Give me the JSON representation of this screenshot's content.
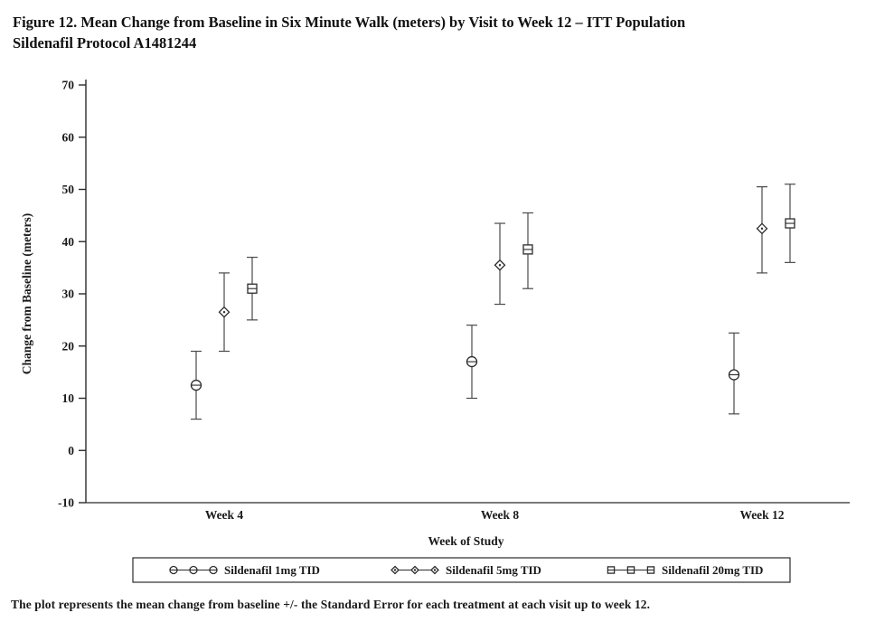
{
  "figure": {
    "title_line1": "Figure 12. Mean Change from Baseline in Six Minute Walk (meters) by Visit to Week 12 – ITT Population",
    "title_line2": "Sildenafil Protocol A1481244",
    "footnote": "The plot represents the mean change from baseline +/- the Standard Error for each treatment at each visit up to week 12."
  },
  "chart_data": {
    "type": "scatter",
    "subtype": "means-with-standard-error-bars",
    "title": "",
    "xlabel": "Week of Study",
    "ylabel": "Change from Baseline (meters)",
    "ylim": [
      -10,
      70
    ],
    "yticks": [
      70,
      60,
      50,
      40,
      30,
      20,
      10,
      0,
      -10
    ],
    "categories": [
      "Week 4",
      "Week 8",
      "Week 12"
    ],
    "grid": false,
    "legend_position": "bottom",
    "series": [
      {
        "name": "Sildenafil 1mg TID",
        "marker": "circle-hline",
        "means": [
          12.5,
          17,
          14.5
        ],
        "upper": [
          19,
          24,
          22.5
        ],
        "lower": [
          6,
          10,
          7
        ]
      },
      {
        "name": "Sildenafil 5mg TID",
        "marker": "diamond",
        "means": [
          26.5,
          35.5,
          42.5
        ],
        "upper": [
          34,
          43.5,
          50.5
        ],
        "lower": [
          19,
          28,
          34
        ]
      },
      {
        "name": "Sildenafil 20mg TID",
        "marker": "square-hline",
        "means": [
          31,
          38.5,
          43.5
        ],
        "upper": [
          37,
          45.5,
          51
        ],
        "lower": [
          25,
          31,
          36
        ]
      }
    ],
    "colors": {
      "axis": "#2b2b2b",
      "error_bar": "#4a4a4a",
      "marker_stroke": "#2b2b2b",
      "marker_fill": "#ffffff",
      "text": "#1a1a1a"
    }
  }
}
